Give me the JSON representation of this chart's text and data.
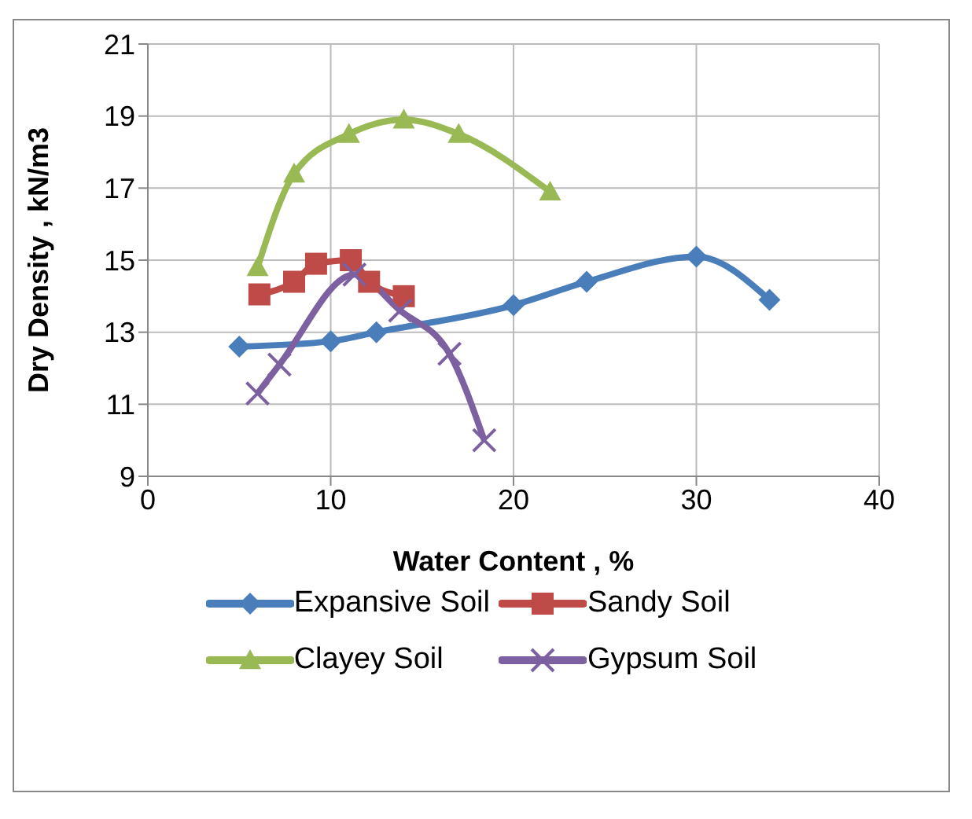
{
  "chart_data": {
    "type": "line",
    "xlabel": "Water Content , %",
    "ylabel": "Dry Density , kN/m3",
    "xlim": [
      0,
      40
    ],
    "xticks": [
      0,
      10,
      20,
      30,
      40
    ],
    "ylim": [
      9,
      21
    ],
    "yticks": [
      9,
      11,
      13,
      15,
      17,
      19,
      21
    ],
    "grid": true,
    "legend": "bottom",
    "series": [
      {
        "name": "Expansive Soil",
        "color": "#4a7ebb",
        "marker": "diamond",
        "x": [
          5,
          10,
          12.5,
          20,
          24,
          30,
          34
        ],
        "values": [
          12.6,
          12.75,
          13.0,
          13.75,
          14.4,
          15.1,
          13.9
        ]
      },
      {
        "name": "Sandy Soil",
        "color": "#be4b48",
        "marker": "square",
        "x": [
          6.1,
          8,
          9.2,
          11.1,
          12.1,
          14
        ],
        "values": [
          14.05,
          14.4,
          14.9,
          15.0,
          14.4,
          14.0
        ]
      },
      {
        "name": "Clayey Soil",
        "color": "#98b954",
        "marker": "triangle",
        "x": [
          6,
          8,
          11,
          14,
          17,
          22
        ],
        "values": [
          14.8,
          17.4,
          18.5,
          18.9,
          18.5,
          16.9
        ]
      },
      {
        "name": "Gypsum Soil",
        "color": "#7d60a0",
        "marker": "cross",
        "x": [
          6,
          7.2,
          11.3,
          13.8,
          16.5,
          18.4
        ],
        "values": [
          11.3,
          12.1,
          14.6,
          13.6,
          12.4,
          10.0
        ]
      }
    ]
  }
}
